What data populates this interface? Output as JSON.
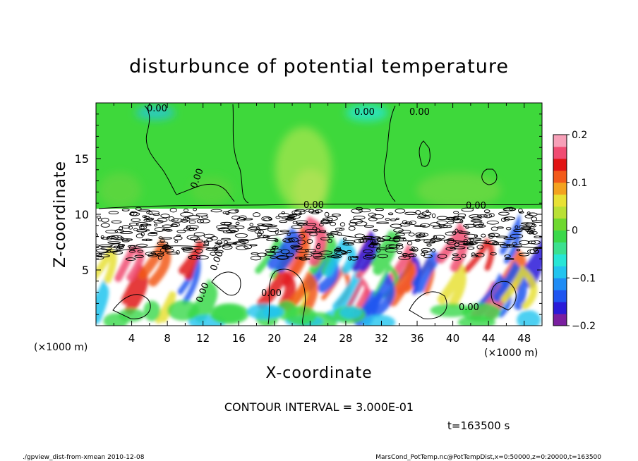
{
  "chart_data": {
    "type": "heatmap",
    "title": "disturbunce of potential temperature",
    "xlabel": "X-coordinate",
    "ylabel": "Z-coordinate",
    "x_unit_label": "(×1000 m)",
    "z_unit_label": "(×1000 m)",
    "xlim": [
      0,
      50
    ],
    "zlim": [
      0,
      20
    ],
    "x_ticks": [
      4,
      8,
      12,
      16,
      20,
      24,
      28,
      32,
      36,
      40,
      44,
      48
    ],
    "z_ticks": [
      5,
      10,
      15
    ],
    "colorbar": {
      "range": [
        -0.2,
        0.2
      ],
      "tick_values": [
        0.2,
        0.1,
        0,
        -0.1,
        -0.2
      ],
      "tick_labels": [
        "0.2",
        "0.1",
        "0",
        "−0.1",
        "−0.2"
      ],
      "colors": [
        "#7a1fa0",
        "#2a1bd8",
        "#1f55f0",
        "#1f8cf5",
        "#22c4ef",
        "#27e6d6",
        "#3be08f",
        "#3ad84a",
        "#6ed82f",
        "#b9e035",
        "#e8e135",
        "#f3a21f",
        "#f25a1a",
        "#e11414",
        "#f04c72",
        "#f7a0b8"
      ]
    },
    "contour_labels": [
      "0.00",
      "0.00",
      "0.00",
      "0.00",
      "0.00",
      "0.00",
      "0.00",
      "0.00",
      "0.00",
      "0.00"
    ],
    "contour_interval": "CONTOUR INTERVAL = 3.000E-01",
    "time_label": "t=163500 s",
    "footer_left": "./gpview_dist-from-xmean   2010-12-08",
    "footer_right": "MarsCond_PotTemp.nc@PotTempDist,x=0:50000,z=0:20000,t=163500"
  }
}
